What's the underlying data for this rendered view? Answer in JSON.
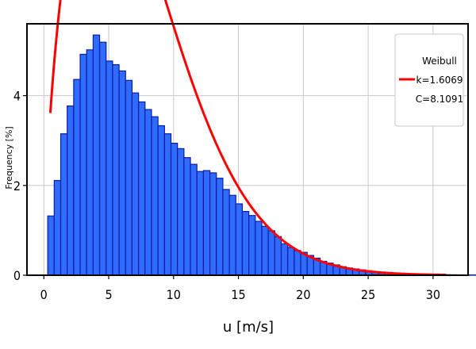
{
  "chart_data": {
    "type": "bar",
    "title": "",
    "xlabel": "u [m/s]",
    "ylabel": "Frequency [%]",
    "xlim": [
      -1.3,
      32.7
    ],
    "ylim": [
      0,
      5.6
    ],
    "xticks": [
      0,
      5,
      10,
      15,
      20,
      25,
      30
    ],
    "yticks": [
      0,
      2,
      4
    ],
    "grid": true,
    "bins": {
      "start": 0.3,
      "width": 0.5,
      "values": [
        1.32,
        2.11,
        3.15,
        3.77,
        4.36,
        4.92,
        5.02,
        5.35,
        5.19,
        4.77,
        4.69,
        4.55,
        4.34,
        4.06,
        3.86,
        3.69,
        3.53,
        3.33,
        3.15,
        2.94,
        2.82,
        2.62,
        2.47,
        2.31,
        2.33,
        2.28,
        2.16,
        1.91,
        1.78,
        1.59,
        1.42,
        1.33,
        1.2,
        1.09,
        0.99,
        0.86,
        0.7,
        0.62,
        0.55,
        0.51,
        0.44,
        0.38,
        0.31,
        0.27,
        0.23,
        0.19,
        0.16,
        0.14,
        0.12,
        0.1,
        0.08,
        0.07,
        0.06,
        0.05,
        0.04,
        0.035,
        0.03,
        0.025,
        0.02,
        0.017,
        0.014,
        0.012,
        0.01,
        0.008,
        0.007,
        0.006,
        0.005,
        0.004,
        0.003,
        0.0025,
        0.002,
        0.0015,
        0.001,
        0.001,
        0.001,
        0.0008,
        0.0008,
        0.0006,
        0.0006,
        0.0005,
        0.0005,
        0.0004,
        0.0004,
        0.0003,
        0.0003,
        0.0002,
        0.0002,
        0.0001,
        0.0001,
        0.0001,
        0.0001,
        0.0001
      ]
    },
    "series": [
      {
        "name": "Weibull",
        "type": "line",
        "k": 1.6069,
        "C": 8.1091,
        "x_range": [
          0.5,
          31
        ]
      }
    ],
    "legend": {
      "position": "top-right",
      "lines": [
        "Weibull",
        "k=1.6069",
        "C=8.1091"
      ]
    },
    "colors": {
      "bar_fill": "#2f6bff",
      "bar_edge": "#0a1f9e",
      "line": "#ff0000",
      "grid": "#c8c8c8"
    }
  }
}
